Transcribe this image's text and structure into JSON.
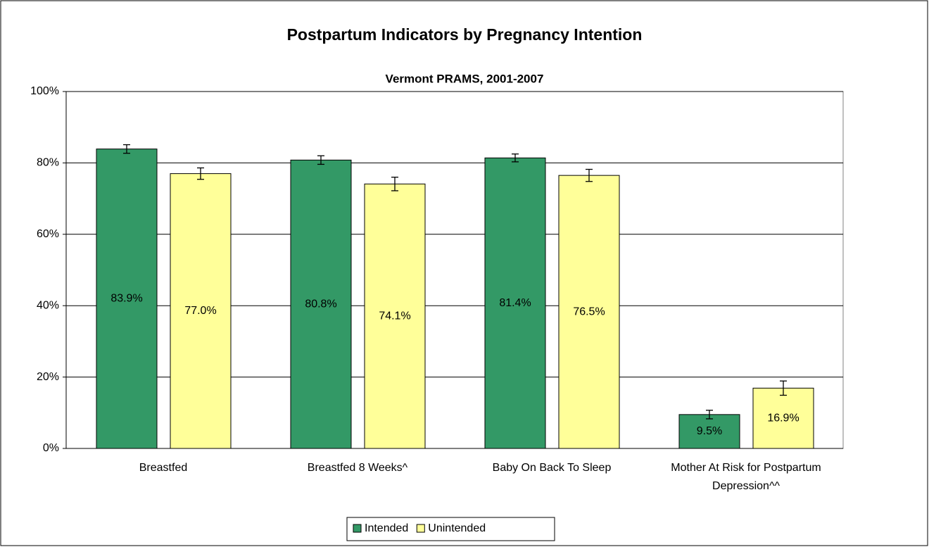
{
  "chart_data": {
    "type": "bar",
    "title": "Postpartum Indicators by Pregnancy Intention",
    "subtitle": "Vermont PRAMS, 2001-2007",
    "categories": [
      "Breastfed",
      "Breastfed 8 Weeks^",
      "Baby On Back To Sleep",
      "Mother At Risk for Postpartum Depression^^"
    ],
    "series": [
      {
        "name": "Intended",
        "color": "#339966",
        "values": [
          83.9,
          80.8,
          81.4,
          9.5
        ],
        "errors": [
          1.2,
          1.2,
          1.1,
          1.2
        ],
        "value_labels": [
          "83.9%",
          "80.8%",
          "81.4%",
          "9.5%"
        ]
      },
      {
        "name": "Unintended",
        "color": "#ffff99",
        "values": [
          77.0,
          74.1,
          76.5,
          16.9
        ],
        "errors": [
          1.6,
          1.9,
          1.7,
          2.0
        ],
        "value_labels": [
          "77.0%",
          "74.1%",
          "76.5%",
          "16.9%"
        ]
      }
    ],
    "ylim": [
      0,
      100
    ],
    "yticks": [
      {
        "value": 0,
        "label": "0%"
      },
      {
        "value": 20,
        "label": "20%"
      },
      {
        "value": 40,
        "label": "40%"
      },
      {
        "value": 60,
        "label": "60%"
      },
      {
        "value": 80,
        "label": "80%"
      },
      {
        "value": 100,
        "label": "100%"
      }
    ],
    "grid": true,
    "legend": "bottom"
  }
}
